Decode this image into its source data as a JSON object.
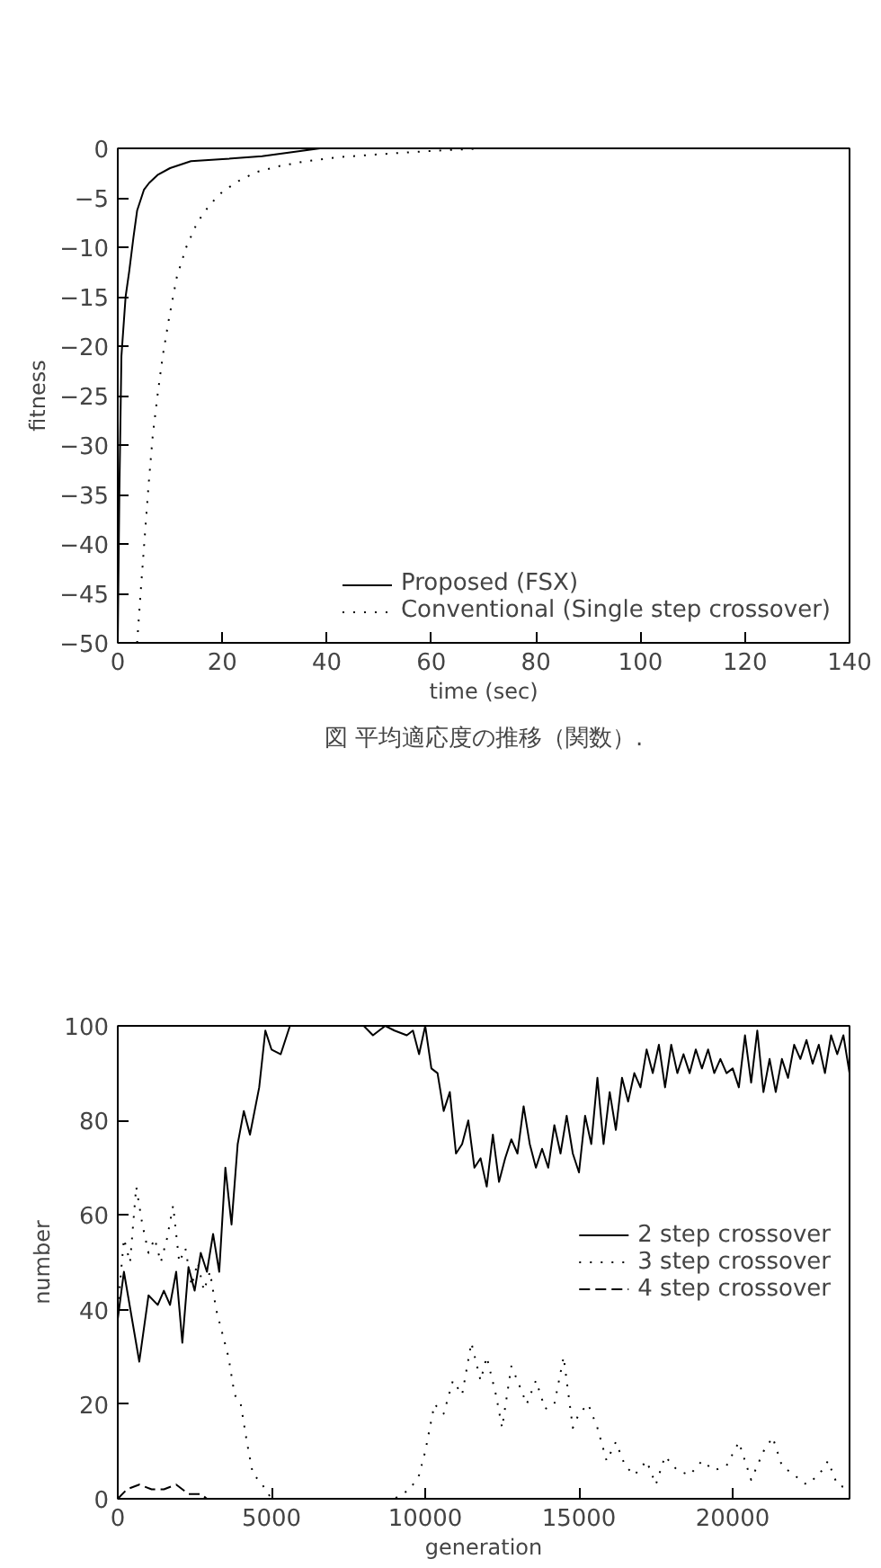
{
  "chart_data": [
    {
      "type": "line",
      "xlabel": "time (sec)",
      "ylabel": "fitness",
      "xlim": [
        0,
        140
      ],
      "ylim": [
        -50,
        0
      ],
      "xticks": [
        0,
        20,
        40,
        60,
        80,
        100,
        120,
        140
      ],
      "yticks": [
        -50,
        -45,
        -40,
        -35,
        -30,
        -25,
        -20,
        -15,
        -10,
        -5,
        0
      ],
      "grid": false,
      "legend": "bottom right",
      "annotations": [
        "図 平均適応度の推移（関数）."
      ],
      "series": [
        {
          "name": "Proposed (FSX)",
          "color": "#000000",
          "line_style": "solid",
          "x": [
            0,
            0.3,
            0.7,
            1.5,
            2.2,
            3,
            3.7,
            5,
            6,
            7.6,
            10,
            14,
            20,
            27.6,
            33,
            38.7,
            50,
            80,
            140
          ],
          "values": [
            -50,
            -35,
            -21,
            -15,
            -12.4,
            -9,
            -6.3,
            -4.2,
            -3.5,
            -2.7,
            -2,
            -1.3,
            -1.1,
            -0.8,
            -0.4,
            0,
            0,
            0,
            0
          ]
        },
        {
          "name": "Conventional (Single step crossover)",
          "color": "#000000",
          "line_style": "dotted",
          "x": [
            3.7,
            4.5,
            5.2,
            5.9,
            6.7,
            7.6,
            8.6,
            9.8,
            11.3,
            13.1,
            15.2,
            17.6,
            20,
            23.1,
            26.5,
            30.9,
            36,
            42,
            50,
            58.7,
            70,
            100,
            140
          ],
          "values": [
            -50,
            -44,
            -39,
            -34,
            -29,
            -25,
            -21,
            -17.2,
            -13,
            -10,
            -7.5,
            -5.7,
            -4.4,
            -3.3,
            -2.4,
            -1.8,
            -1.3,
            -0.9,
            -0.6,
            -0.3,
            0,
            0,
            0
          ]
        }
      ]
    },
    {
      "type": "line",
      "xlabel": "generation",
      "ylabel": "number",
      "xlim": [
        0,
        23800
      ],
      "ylim": [
        0,
        100
      ],
      "xticks": [
        0,
        5000,
        10000,
        15000,
        20000
      ],
      "yticks": [
        0,
        20,
        40,
        60,
        80,
        100
      ],
      "grid": false,
      "legend": "right",
      "series": [
        {
          "name": "2 step crossover",
          "color": "#000000",
          "line_style": "solid",
          "x": [
            0,
            200,
            700,
            1000,
            1300,
            1500,
            1700,
            1900,
            2100,
            2300,
            2500,
            2700,
            2900,
            3100,
            3300,
            3500,
            3700,
            3900,
            4100,
            4300,
            4600,
            4800,
            5000,
            5300,
            5600,
            6000,
            8000,
            8300,
            8700,
            9000,
            9400,
            9600,
            9800,
            10000,
            10200,
            10400,
            10600,
            10800,
            11000,
            11200,
            11400,
            11600,
            11800,
            12000,
            12200,
            12400,
            12600,
            12800,
            13000,
            13200,
            13400,
            13600,
            13800,
            14000,
            14200,
            14400,
            14600,
            14800,
            15000,
            15200,
            15400,
            15600,
            15800,
            16000,
            16200,
            16400,
            16600,
            16800,
            17000,
            17200,
            17400,
            17600,
            17800,
            18000,
            18200,
            18400,
            18600,
            18800,
            19000,
            19200,
            19400,
            19600,
            19800,
            20000,
            20200,
            20400,
            20600,
            20800,
            21000,
            21200,
            21400,
            21600,
            21800,
            22000,
            22200,
            22400,
            22600,
            22800,
            23000,
            23200,
            23400,
            23600,
            23800
          ],
          "values": [
            38,
            48,
            29,
            43,
            41,
            44,
            41,
            48,
            33,
            49,
            44,
            52,
            48,
            56,
            48,
            70,
            58,
            75,
            82,
            77,
            87,
            99,
            95,
            94,
            100,
            100,
            100,
            98,
            100,
            99,
            98,
            99,
            94,
            100,
            91,
            90,
            82,
            86,
            73,
            75,
            80,
            70,
            72,
            66,
            77,
            67,
            72,
            76,
            73,
            83,
            75,
            70,
            74,
            70,
            79,
            73,
            81,
            73,
            69,
            81,
            75,
            89,
            75,
            86,
            78,
            89,
            84,
            90,
            87,
            95,
            90,
            96,
            87,
            96,
            90,
            94,
            90,
            95,
            91,
            95,
            90,
            93,
            90,
            91,
            87,
            98,
            88,
            99,
            86,
            93,
            86,
            93,
            89,
            96,
            93,
            97,
            92,
            96,
            90,
            98,
            94,
            98,
            90
          ]
        },
        {
          "name": "3 step crossover",
          "color": "#000000",
          "line_style": "dotted",
          "x": [
            0,
            200,
            400,
            600,
            800,
            1000,
            1200,
            1400,
            1600,
            1800,
            2000,
            2200,
            2400,
            2600,
            2800,
            3000,
            3200,
            3400,
            3600,
            3800,
            4000,
            4200,
            4400,
            4600,
            4800,
            5000,
            9000,
            9500,
            9800,
            10000,
            10300,
            10600,
            10900,
            11200,
            11500,
            11800,
            12000,
            12300,
            12500,
            12800,
            13000,
            13300,
            13600,
            13900,
            14200,
            14500,
            14800,
            15000,
            15300,
            15600,
            15900,
            16200,
            16500,
            16800,
            17200,
            17500,
            17800,
            18200,
            18600,
            19000,
            19400,
            19800,
            20200,
            20600,
            21000,
            21300,
            21600,
            22000,
            22400,
            22800,
            23100,
            23400,
            23800
          ],
          "values": [
            40,
            55,
            50,
            66,
            58,
            52,
            55,
            50,
            55,
            62,
            50,
            53,
            45,
            50,
            44,
            48,
            40,
            35,
            30,
            22,
            20,
            12,
            5,
            4,
            2,
            0,
            0,
            2,
            5,
            10,
            20,
            18,
            25,
            22,
            33,
            25,
            30,
            22,
            15,
            28,
            25,
            20,
            25,
            19,
            20,
            30,
            15,
            18,
            20,
            15,
            8,
            12,
            7,
            5,
            8,
            3,
            9,
            6,
            5,
            8,
            6,
            7,
            12,
            4,
            10,
            13,
            7,
            5,
            3,
            5,
            8,
            3,
            2
          ]
        },
        {
          "name": "4 step crossover",
          "color": "#000000",
          "line_style": "dashed",
          "x": [
            0,
            300,
            700,
            1100,
            1500,
            1900,
            2300,
            2700,
            2900
          ],
          "values": [
            0,
            2,
            3,
            2,
            2,
            3,
            1,
            1,
            0
          ]
        }
      ]
    }
  ]
}
